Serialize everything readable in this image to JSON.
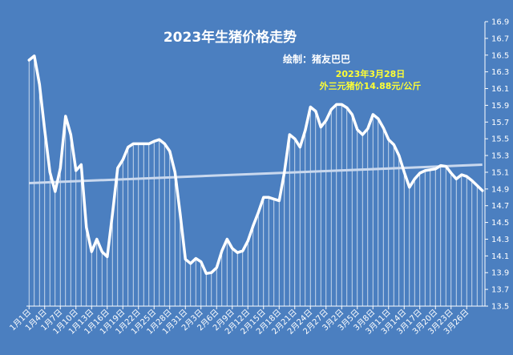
{
  "chart_data": {
    "type": "line",
    "title": "2023年生猪价格走势",
    "subtitle": "绘制：猪友巴巴",
    "annotation": [
      "2023年3月28日",
      "外三元猪价14.88元/公斤"
    ],
    "ylim": [
      13.5,
      16.9
    ],
    "yticks": [
      "13.5",
      "13.7",
      "13.9",
      "14.1",
      "14.3",
      "14.5",
      "14.7",
      "14.9",
      "15.1",
      "15.3",
      "15.5",
      "15.7",
      "15.9",
      "16.1",
      "16.3",
      "16.5",
      "16.7",
      "16.9"
    ],
    "xticks": [
      "1月1日",
      "1月4日",
      "1月7日",
      "1月10日",
      "1月13日",
      "1月16日",
      "1月19日",
      "1月22日",
      "1月25日",
      "1月28日",
      "1月31日",
      "2月3日",
      "2月6日",
      "2月9日",
      "2月12日",
      "2月15日",
      "2月18日",
      "2月21日",
      "2月24日",
      "2月27日",
      "3月2日",
      "3月5日",
      "3月8日",
      "3月11日",
      "3月14日",
      "3月17日",
      "3月20日",
      "3月23日",
      "3月26日"
    ],
    "trendline": [
      14.97,
      15.19
    ],
    "series": [
      {
        "values": [
          16.44,
          16.49,
          16.15,
          15.6,
          15.1,
          14.87,
          15.15,
          15.77,
          15.55,
          15.12,
          15.19,
          14.44,
          14.15,
          14.3,
          14.15,
          14.09,
          14.6,
          15.15,
          15.25,
          15.4,
          15.44,
          15.44,
          15.44,
          15.44,
          15.47,
          15.49,
          15.44,
          15.35,
          15.1,
          14.6,
          14.06,
          14.01,
          14.07,
          14.03,
          13.89,
          13.9,
          13.96,
          14.16,
          14.3,
          14.19,
          14.14,
          14.16,
          14.28,
          14.46,
          14.62,
          14.8,
          14.8,
          14.78,
          14.76,
          15.1,
          15.55,
          15.5,
          15.4,
          15.6,
          15.88,
          15.83,
          15.64,
          15.72,
          15.85,
          15.91,
          15.91,
          15.87,
          15.79,
          15.61,
          15.55,
          15.62,
          15.79,
          15.74,
          15.63,
          15.49,
          15.43,
          15.3,
          15.1,
          14.92,
          15.02,
          15.09,
          15.12,
          15.13,
          15.14,
          15.18,
          15.17,
          15.09,
          15.02,
          15.07,
          15.05,
          15.0,
          14.94,
          14.88
        ]
      }
    ]
  }
}
